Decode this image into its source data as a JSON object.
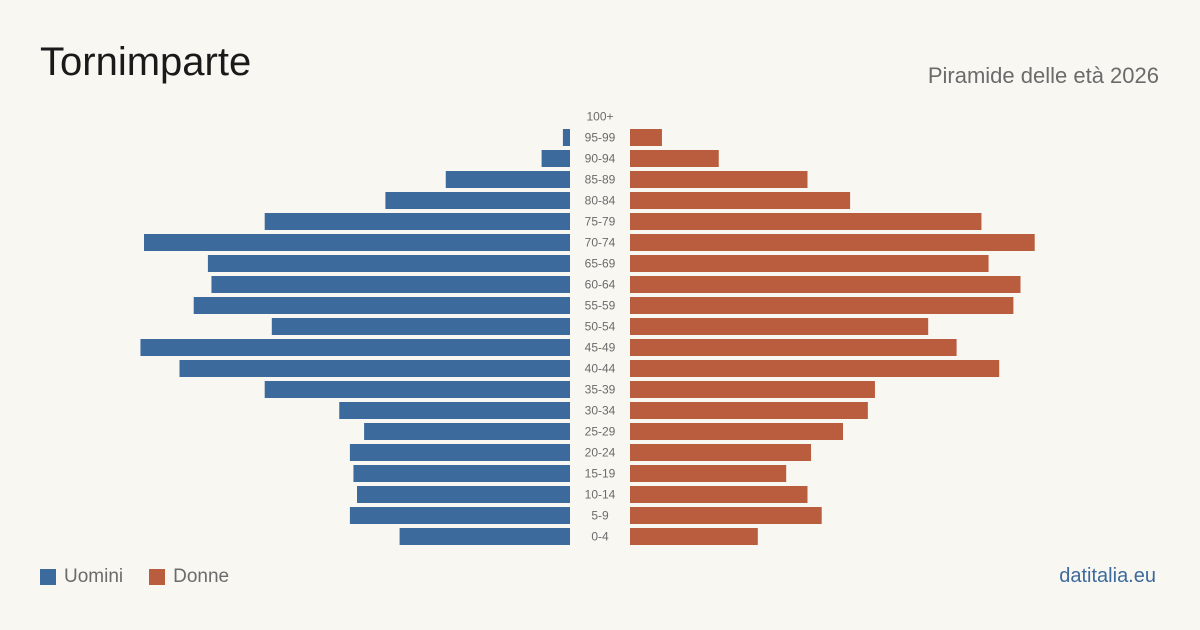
{
  "header": {
    "title": "Tornimparte",
    "subtitle": "Piramide delle età 2026"
  },
  "legend": {
    "male_label": "Uomini",
    "female_label": "Donne"
  },
  "source": "datitalia.eu",
  "colors": {
    "male": "#3d6a9c",
    "female": "#b95d3e",
    "label": "#6b6b6b"
  },
  "chart_data": {
    "type": "bar",
    "orientation": "horizontal-pyramid",
    "categories": [
      "100+",
      "95-99",
      "90-94",
      "85-89",
      "80-84",
      "75-79",
      "70-74",
      "65-69",
      "60-64",
      "55-59",
      "50-54",
      "45-49",
      "40-44",
      "35-39",
      "30-34",
      "25-29",
      "20-24",
      "15-19",
      "10-14",
      "5-9",
      "0-4"
    ],
    "series": [
      {
        "name": "Uomini",
        "values": [
          0,
          1,
          4,
          17.5,
          26,
          43,
          60,
          51,
          50.5,
          53,
          42,
          60.5,
          55,
          43,
          32.5,
          29,
          31,
          30.5,
          30,
          31,
          24
        ]
      },
      {
        "name": "Donne",
        "values": [
          0,
          4.5,
          12.5,
          25,
          31,
          49.5,
          57,
          50.5,
          55,
          54,
          42,
          46,
          52,
          34.5,
          33.5,
          30,
          25.5,
          22,
          25,
          27,
          18
        ]
      }
    ],
    "legend_position": "bottom-left",
    "grid": false
  }
}
